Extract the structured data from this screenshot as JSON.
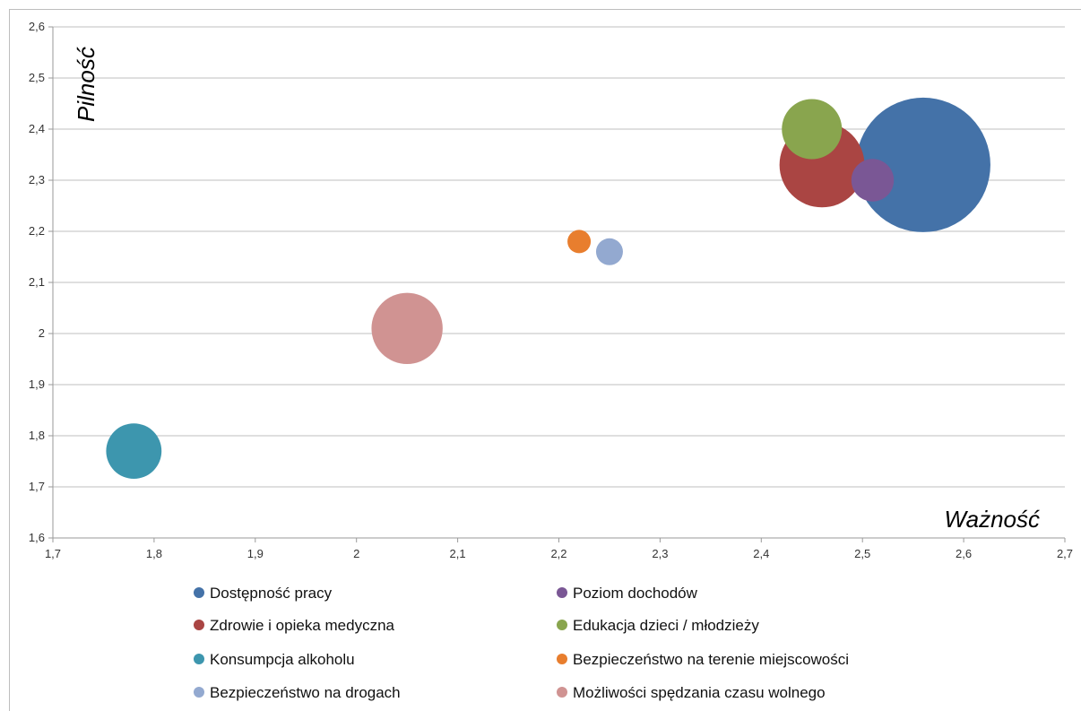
{
  "chart_data": {
    "type": "bubble",
    "xlabel": "Ważność",
    "ylabel": "Pilność",
    "xlim": [
      1.7,
      2.7
    ],
    "ylim": [
      1.6,
      2.6
    ],
    "x_ticks": [
      "1,7",
      "1,8",
      "1,9",
      "2",
      "2,1",
      "2,2",
      "2,3",
      "2,4",
      "2,5",
      "2,6",
      "2,7"
    ],
    "y_ticks": [
      "1,6",
      "1,7",
      "1,8",
      "1,9",
      "2",
      "2,1",
      "2,2",
      "2,3",
      "2,4",
      "2,5",
      "2,6"
    ],
    "grid": "horizontal",
    "legend_position": "bottom",
    "series": [
      {
        "name": "Dostępność pracy",
        "x": 2.56,
        "y": 2.33,
        "size": 100,
        "color": "#4472A8"
      },
      {
        "name": "Poziom dochodów",
        "x": 2.51,
        "y": 2.3,
        "size": 10,
        "color": "#7A5795"
      },
      {
        "name": "Zdrowie i opieka medyczna",
        "x": 2.46,
        "y": 2.33,
        "size": 40,
        "color": "#AA4543"
      },
      {
        "name": "Edukacja dzieci / młodzieży",
        "x": 2.45,
        "y": 2.4,
        "size": 20,
        "color": "#89A54E"
      },
      {
        "name": "Konsumpcja alkoholu",
        "x": 1.78,
        "y": 1.77,
        "size": 17,
        "color": "#3D96AE"
      },
      {
        "name": "Bezpieczeństwo na terenie miejscowości",
        "x": 2.22,
        "y": 2.18,
        "size": 3,
        "color": "#E87E2E"
      },
      {
        "name": "Bezpieczeństwo na drogach",
        "x": 2.25,
        "y": 2.16,
        "size": 4,
        "color": "#93A9D0"
      },
      {
        "name": "Możliwości spędzania czasu wolnego",
        "x": 2.05,
        "y": 2.01,
        "size": 28,
        "color": "#D09392"
      }
    ]
  }
}
